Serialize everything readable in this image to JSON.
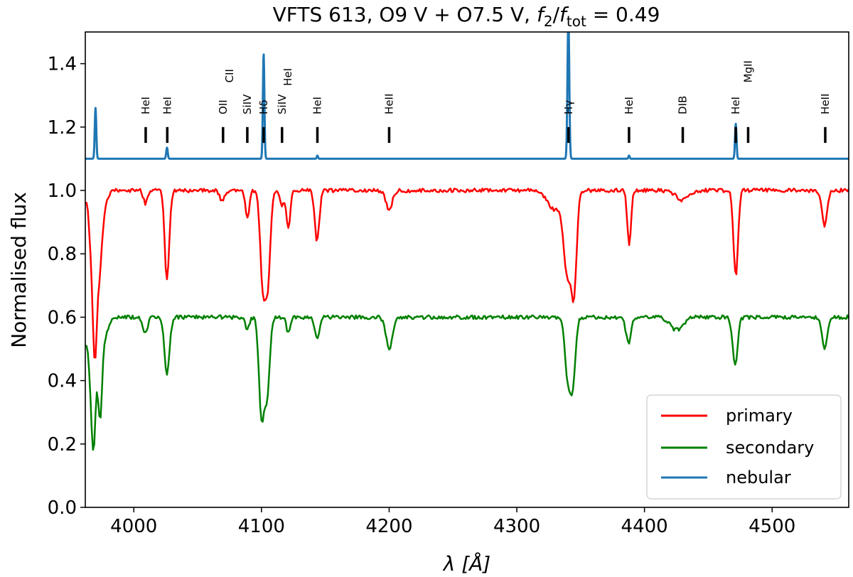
{
  "chart_data": {
    "type": "line",
    "title": {
      "main": "VFTS 613, O9  V + O7.5 V, ",
      "f2": "f",
      "f2_sub": "2",
      "slash": "/",
      "ftot": "f",
      "ftot_sub": "tot",
      "tail": " = 0.49"
    },
    "xlabel": "λ [Å]",
    "ylabel": "Normalised flux",
    "xlim": [
      3962,
      4560
    ],
    "ylim": [
      0.0,
      1.5
    ],
    "xticks": [
      4000,
      4100,
      4200,
      4300,
      4400,
      4500
    ],
    "yticks": [
      0.0,
      0.2,
      0.4,
      0.6,
      0.8,
      1.0,
      1.2,
      1.4
    ],
    "xtick_labels": [
      "4000",
      "4100",
      "4200",
      "4300",
      "4400",
      "4500"
    ],
    "ytick_labels": [
      "0.0",
      "0.2",
      "0.4",
      "0.6",
      "0.8",
      "1.0",
      "1.2",
      "1.4"
    ],
    "grid": false,
    "legend_position": "bottom-right",
    "colors": {
      "primary": "#ff0000",
      "secondary": "#008000",
      "nebular": "#1f77b4",
      "marker": "#000000"
    },
    "series": [
      {
        "name": "primary",
        "color": "#ff0000",
        "continuum": 1.0,
        "start_value": 0.96,
        "lines": [
          {
            "x": 3969.5,
            "depth": 0.45,
            "width": 1.6
          },
          {
            "x": 3966.5,
            "depth": 0.16,
            "width": 2.0
          },
          {
            "x": 3973.0,
            "depth": 0.18,
            "width": 1.8
          },
          {
            "x": 3975.0,
            "depth": 0.08,
            "width": 3.0
          },
          {
            "x": 4009.0,
            "depth": 0.04,
            "width": 1.5
          },
          {
            "x": 4026.0,
            "depth": 0.28,
            "width": 1.8
          },
          {
            "x": 4069.0,
            "depth": 0.03,
            "width": 2.0
          },
          {
            "x": 4089.0,
            "depth": 0.09,
            "width": 1.5
          },
          {
            "x": 4101.0,
            "depth": 0.29,
            "width": 2.0
          },
          {
            "x": 4105.0,
            "depth": 0.28,
            "width": 2.0
          },
          {
            "x": 4116.0,
            "depth": 0.05,
            "width": 1.5
          },
          {
            "x": 4121.0,
            "depth": 0.12,
            "width": 1.5
          },
          {
            "x": 4143.5,
            "depth": 0.16,
            "width": 1.8
          },
          {
            "x": 4200.0,
            "depth": 0.06,
            "width": 2.5
          },
          {
            "x": 4340.0,
            "depth": 0.26,
            "width": 3.0
          },
          {
            "x": 4345.0,
            "depth": 0.27,
            "width": 2.0
          },
          {
            "x": 4330.0,
            "depth": 0.06,
            "width": 6.0
          },
          {
            "x": 4388.0,
            "depth": 0.17,
            "width": 1.5
          },
          {
            "x": 4430.0,
            "depth": 0.03,
            "width": 5.0
          },
          {
            "x": 4471.5,
            "depth": 0.27,
            "width": 1.8
          },
          {
            "x": 4541.0,
            "depth": 0.11,
            "width": 2.0
          }
        ]
      },
      {
        "name": "secondary",
        "color": "#008000",
        "continuum": 0.6,
        "start_value": 0.51,
        "lines": [
          {
            "x": 3968.5,
            "depth": 0.37,
            "width": 1.8
          },
          {
            "x": 3973.5,
            "depth": 0.29,
            "width": 1.6
          },
          {
            "x": 3965.0,
            "depth": 0.12,
            "width": 2.5
          },
          {
            "x": 3977.0,
            "depth": 0.06,
            "width": 3.0
          },
          {
            "x": 4009.0,
            "depth": 0.05,
            "width": 1.8
          },
          {
            "x": 4026.0,
            "depth": 0.18,
            "width": 2.0
          },
          {
            "x": 4089.0,
            "depth": 0.04,
            "width": 1.5
          },
          {
            "x": 4100.0,
            "depth": 0.31,
            "width": 2.0
          },
          {
            "x": 4104.5,
            "depth": 0.24,
            "width": 2.0
          },
          {
            "x": 4121.0,
            "depth": 0.05,
            "width": 1.5
          },
          {
            "x": 4143.5,
            "depth": 0.07,
            "width": 1.8
          },
          {
            "x": 4200.0,
            "depth": 0.1,
            "width": 2.5
          },
          {
            "x": 4340.0,
            "depth": 0.19,
            "width": 2.2
          },
          {
            "x": 4344.0,
            "depth": 0.19,
            "width": 2.0
          },
          {
            "x": 4387.5,
            "depth": 0.08,
            "width": 2.0
          },
          {
            "x": 4425.0,
            "depth": 0.04,
            "width": 5.0
          },
          {
            "x": 4471.0,
            "depth": 0.15,
            "width": 2.0
          },
          {
            "x": 4541.0,
            "depth": 0.1,
            "width": 2.0
          }
        ]
      },
      {
        "name": "nebular",
        "color": "#1f77b4",
        "continuum": 1.1,
        "start_value": 1.1,
        "lines": [
          {
            "x": 3970.0,
            "depth": -0.16,
            "width": 0.6
          },
          {
            "x": 4026.0,
            "depth": -0.035,
            "width": 0.6
          },
          {
            "x": 4101.7,
            "depth": -0.33,
            "width": 0.6
          },
          {
            "x": 4143.8,
            "depth": -0.01,
            "width": 0.5
          },
          {
            "x": 4340.4,
            "depth": -0.45,
            "width": 0.7
          },
          {
            "x": 4387.9,
            "depth": -0.01,
            "width": 0.5
          },
          {
            "x": 4471.5,
            "depth": -0.11,
            "width": 0.6
          }
        ]
      }
    ],
    "line_markers": {
      "y_low": 1.15,
      "y_high": 1.2,
      "items": [
        {
          "x": 4009.3,
          "label": "HeI",
          "label_y": 1.24
        },
        {
          "x": 4026.2,
          "label": "HeI",
          "label_y": 1.24
        },
        {
          "x": 4069.9,
          "label": "OII",
          "label_y": 1.24
        },
        {
          "x": 4075.0,
          "label": "CII",
          "label_y": 1.34,
          "marker": false
        },
        {
          "x": 4088.9,
          "label": "SiIV",
          "label_y": 1.24
        },
        {
          "x": 4101.7,
          "label": "Hδ",
          "label_y": 1.24
        },
        {
          "x": 4116.1,
          "label": "SiIV",
          "label_y": 1.24
        },
        {
          "x": 4120.8,
          "label": "HeI",
          "label_y": 1.33,
          "marker": false
        },
        {
          "x": 4143.8,
          "label": "HeI",
          "label_y": 1.24
        },
        {
          "x": 4200.0,
          "label": "HeII",
          "label_y": 1.24
        },
        {
          "x": 4340.5,
          "label": "Hγ",
          "label_y": 1.24
        },
        {
          "x": 4387.9,
          "label": "HeI",
          "label_y": 1.24
        },
        {
          "x": 4430.0,
          "label": "DIB",
          "label_y": 1.24
        },
        {
          "x": 4471.5,
          "label": "HeI",
          "label_y": 1.24
        },
        {
          "x": 4481.2,
          "label": "MgII",
          "label_y": 1.34
        },
        {
          "x": 4541.6,
          "label": "HeII",
          "label_y": 1.24
        }
      ]
    },
    "legend": [
      {
        "label": "primary",
        "color": "#ff0000"
      },
      {
        "label": "secondary",
        "color": "#008000"
      },
      {
        "label": "nebular",
        "color": "#1f77b4"
      }
    ]
  }
}
